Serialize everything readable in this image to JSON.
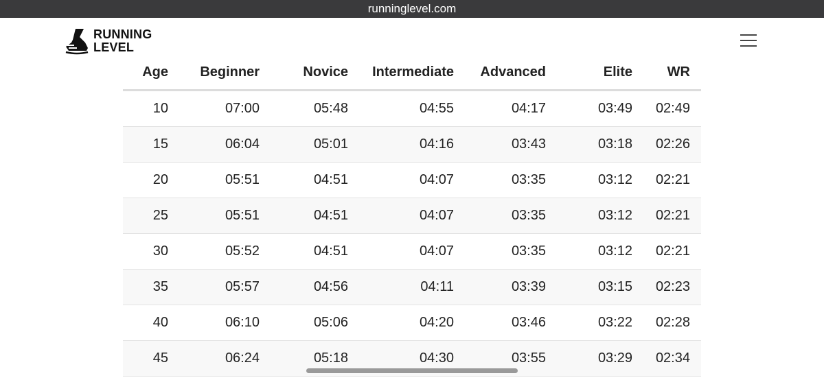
{
  "browser": {
    "url": "runninglevel.com"
  },
  "header": {
    "logo_line1": "RUNNING",
    "logo_line2": "LEVEL",
    "logo_icon": "running-shoe-icon",
    "menu_icon": "hamburger-menu-icon"
  },
  "table": {
    "columns": [
      "Age",
      "Beginner",
      "Novice",
      "Intermediate",
      "Advanced",
      "Elite",
      "WR"
    ],
    "rows": [
      [
        "10",
        "07:00",
        "05:48",
        "04:55",
        "04:17",
        "03:49",
        "02:49"
      ],
      [
        "15",
        "06:04",
        "05:01",
        "04:16",
        "03:43",
        "03:18",
        "02:26"
      ],
      [
        "20",
        "05:51",
        "04:51",
        "04:07",
        "03:35",
        "03:12",
        "02:21"
      ],
      [
        "25",
        "05:51",
        "04:51",
        "04:07",
        "03:35",
        "03:12",
        "02:21"
      ],
      [
        "30",
        "05:52",
        "04:51",
        "04:07",
        "03:35",
        "03:12",
        "02:21"
      ],
      [
        "35",
        "05:57",
        "04:56",
        "04:11",
        "03:39",
        "03:15",
        "02:23"
      ],
      [
        "40",
        "06:10",
        "05:06",
        "04:20",
        "03:46",
        "03:22",
        "02:28"
      ],
      [
        "45",
        "06:24",
        "05:18",
        "04:30",
        "03:55",
        "03:29",
        "02:34"
      ]
    ]
  },
  "colors": {
    "url_bar_bg": "#3a3a3c",
    "row_alt_bg": "#f8f8f8",
    "text": "#222222"
  }
}
